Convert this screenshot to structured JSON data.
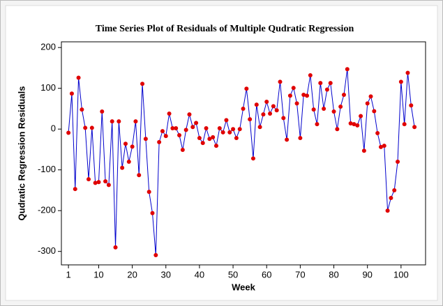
{
  "chart_data": {
    "type": "line",
    "title": "Time Series Plot of Residuals of Multiple Qudratic Regression",
    "x_label": "Week",
    "y_label": "Qudratic Regression Residuals",
    "x": [
      1,
      2,
      3,
      4,
      5,
      6,
      7,
      8,
      9,
      10,
      11,
      12,
      13,
      14,
      15,
      16,
      17,
      18,
      19,
      20,
      21,
      22,
      23,
      24,
      25,
      26,
      27,
      28,
      29,
      30,
      31,
      32,
      33,
      34,
      35,
      36,
      37,
      38,
      39,
      40,
      41,
      42,
      43,
      44,
      45,
      46,
      47,
      48,
      49,
      50,
      51,
      52,
      53,
      54,
      55,
      56,
      57,
      58,
      59,
      60,
      61,
      62,
      63,
      64,
      65,
      66,
      67,
      68,
      69,
      70,
      71,
      72,
      73,
      74,
      75,
      76,
      77,
      78,
      79,
      80,
      81,
      82,
      83,
      84,
      85,
      86,
      87,
      88,
      89,
      90,
      91,
      92,
      93,
      94,
      95,
      96,
      97,
      98,
      99,
      100,
      101,
      102,
      103,
      104
    ],
    "series": [
      {
        "name": "Residuals",
        "color": "#0000cc",
        "marker_color": "#e00000",
        "values": [
          -9,
          87,
          -147,
          126,
          48,
          3,
          -123,
          3,
          -132,
          -130,
          43,
          -128,
          -137,
          19,
          -290,
          19,
          -95,
          -36,
          -80,
          -43,
          19,
          -113,
          111,
          -24,
          -154,
          -206,
          -309,
          -32,
          -5,
          -17,
          38,
          2,
          2,
          -15,
          -51,
          -2,
          36,
          5,
          15,
          -22,
          -34,
          2,
          -24,
          -20,
          -41,
          2,
          -8,
          22,
          -8,
          0,
          -22,
          0,
          50,
          99,
          24,
          -72,
          60,
          5,
          36,
          67,
          38,
          56,
          46,
          116,
          27,
          -26,
          82,
          101,
          63,
          -22,
          84,
          82,
          132,
          48,
          12,
          113,
          50,
          97,
          113,
          43,
          0,
          55,
          84,
          147,
          14,
          12,
          9,
          32,
          -53,
          63,
          80,
          44,
          -10,
          -44,
          -41,
          -200,
          -169,
          -150,
          -80,
          116,
          12,
          138,
          58,
          5
        ]
      }
    ],
    "xlim": [
      -1.1,
      107.3
    ],
    "xticks": [
      1,
      10,
      20,
      30,
      40,
      50,
      60,
      70,
      80,
      90,
      100
    ],
    "ylim": [
      -333,
      214
    ],
    "yticks": [
      -300,
      -200,
      -100,
      0,
      100,
      200
    ]
  }
}
